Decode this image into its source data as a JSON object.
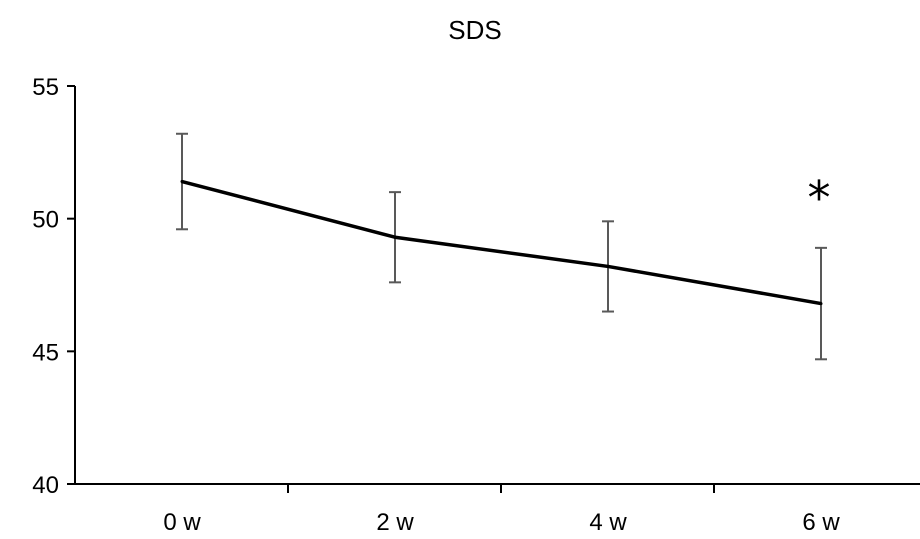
{
  "chart_data": {
    "type": "line",
    "title": "SDS",
    "xlabel": "",
    "ylabel": "",
    "categories": [
      "0 w",
      "2 w",
      "4 w",
      "6 w"
    ],
    "series": [
      {
        "values": [
          51.4,
          49.3,
          48.2,
          46.8
        ],
        "error": [
          1.8,
          1.7,
          1.7,
          2.1
        ],
        "color": "#000000"
      }
    ],
    "ylim": [
      40,
      55
    ],
    "yticks": [
      40,
      45,
      50,
      55
    ],
    "grid": false,
    "legend": "none",
    "error_bar_color": "#595959",
    "annotations": [
      {
        "text": "*",
        "category": "6 w"
      }
    ]
  }
}
